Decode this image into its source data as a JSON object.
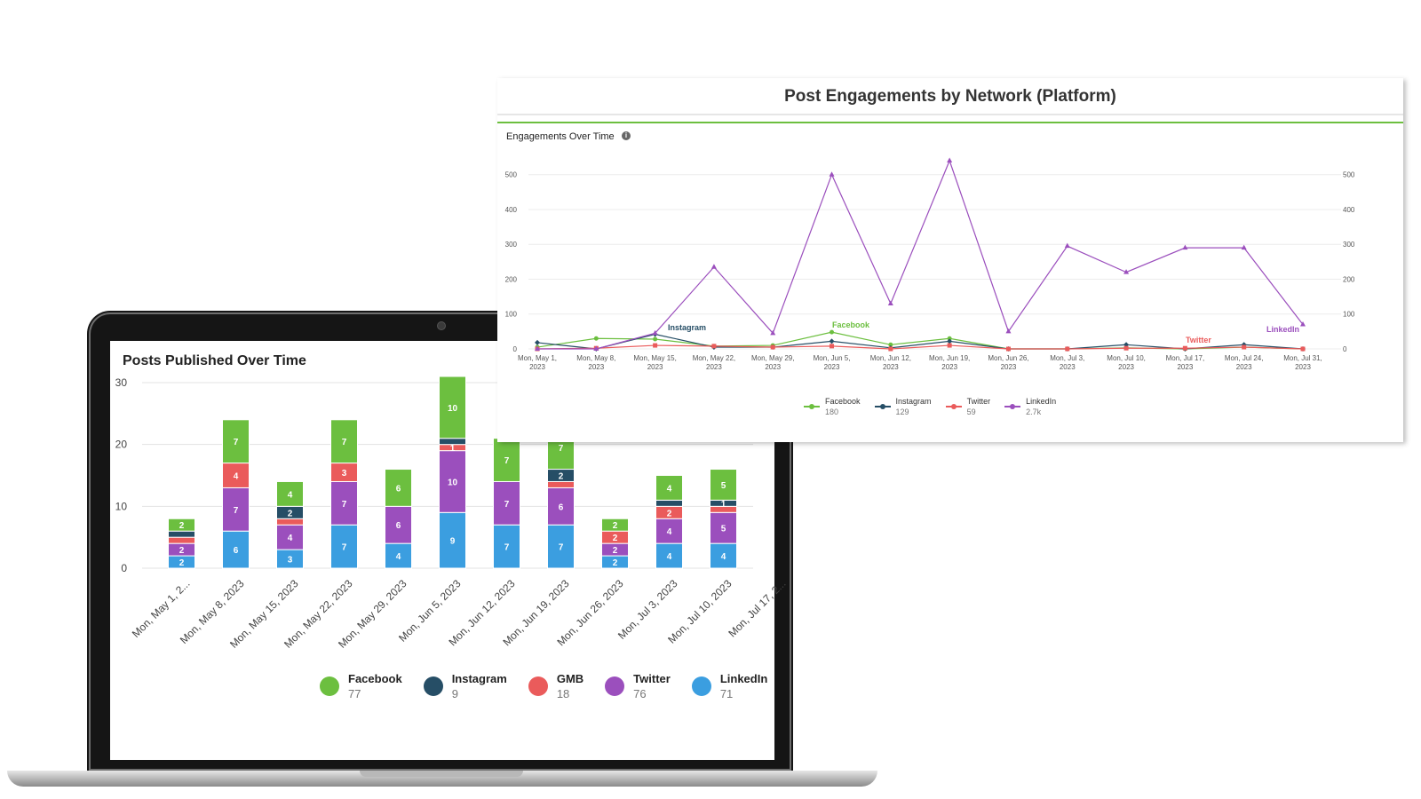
{
  "posts_chart": {
    "title": "Posts Published Over Time",
    "legend": [
      {
        "name": "Facebook",
        "total": "77",
        "color": "#6cbf3f"
      },
      {
        "name": "Instagram",
        "total": "9",
        "color": "#264e66"
      },
      {
        "name": "GMB",
        "total": "18",
        "color": "#ea5b5b"
      },
      {
        "name": "Twitter",
        "total": "76",
        "color": "#9b4fbd"
      },
      {
        "name": "LinkedIn",
        "total": "71",
        "color": "#3b9ee0"
      }
    ]
  },
  "engagement_chart": {
    "title": "Post Engagements by Network (Platform)",
    "subtitle": "Engagements Over Time",
    "info_icon": "info-icon",
    "legend": [
      {
        "name": "Facebook",
        "total": "180",
        "color": "#6cbf3f"
      },
      {
        "name": "Instagram",
        "total": "129",
        "color": "#264e66"
      },
      {
        "name": "Twitter",
        "total": "59",
        "color": "#ea5b5b"
      },
      {
        "name": "LinkedIn",
        "total": "2.7k",
        "color": "#9b4fbd"
      }
    ]
  },
  "chart_data": [
    {
      "type": "bar",
      "stacked": true,
      "title": "Posts Published Over Time",
      "categories": [
        "Mon, May 1, 2...",
        "Mon, May 8, 2023",
        "Mon, May 15, 2023",
        "Mon, May 22, 2023",
        "Mon, May 29, 2023",
        "Mon, Jun 5, 2023",
        "Mon, Jun 12, 2023",
        "Mon, Jun 19, 2023",
        "Mon, Jun 26, 2023",
        "Mon, Jul 3, 2023",
        "Mon, Jul 10, 2023",
        "Mon, Jul 17, 2..."
      ],
      "yticks": [
        0,
        10,
        20,
        30
      ],
      "ylim": [
        0,
        30
      ],
      "grid": true,
      "legend_position": "bottom",
      "series": [
        {
          "name": "LinkedIn",
          "color": "#3b9ee0",
          "values": [
            2,
            6,
            3,
            7,
            4,
            9,
            7,
            7,
            2,
            4,
            4,
            null
          ]
        },
        {
          "name": "Twitter",
          "color": "#9b4fbd",
          "values": [
            2,
            7,
            4,
            7,
            6,
            10,
            7,
            6,
            2,
            4,
            5,
            null
          ]
        },
        {
          "name": "GMB",
          "color": "#ea5b5b",
          "values": [
            1,
            4,
            1,
            3,
            0,
            1,
            0,
            1,
            2,
            2,
            1,
            null
          ]
        },
        {
          "name": "Instagram",
          "color": "#264e66",
          "values": [
            1,
            0,
            2,
            0,
            0,
            1,
            0,
            2,
            0,
            1,
            1,
            null
          ]
        },
        {
          "name": "Facebook",
          "color": "#6cbf3f",
          "values": [
            2,
            7,
            4,
            7,
            6,
            10,
            7,
            7,
            2,
            4,
            5,
            null
          ]
        }
      ],
      "data_labels": [
        [
          "2",
          "2",
          "",
          "",
          "2"
        ],
        [
          "6",
          "7",
          "4",
          "0",
          "7"
        ],
        [
          "3",
          "4",
          "",
          "2",
          "4"
        ],
        [
          "7",
          "7",
          "3",
          "0",
          "7"
        ],
        [
          "4",
          "6",
          "0",
          "",
          "6"
        ],
        [
          "9",
          "10",
          "1",
          "",
          "10"
        ],
        [
          "7",
          "7",
          "0",
          "",
          "7"
        ],
        [
          "7",
          "6",
          "",
          "2",
          "7"
        ],
        [
          "2",
          "2",
          "2",
          "",
          "2"
        ],
        [
          "4",
          "4",
          "2",
          "",
          "4"
        ],
        [
          "4",
          "5",
          "",
          "1",
          "5"
        ]
      ]
    },
    {
      "type": "line",
      "title": "Post Engagements by Network (Platform)",
      "subtitle": "Engagements Over Time",
      "x": [
        "Mon, May 1, 2023",
        "Mon, May 8, 2023",
        "Mon, May 15, 2023",
        "Mon, May 22, 2023",
        "Mon, May 29, 2023",
        "Mon, Jun 5, 2023",
        "Mon, Jun 12, 2023",
        "Mon, Jun 19, 2023",
        "Mon, Jun 26, 2023",
        "Mon, Jul 3, 2023",
        "Mon, Jul 10, 2023",
        "Mon, Jul 17, 2023",
        "Mon, Jul 24, 2023",
        "Mon, Jul 31, 2023"
      ],
      "yticks": [
        0,
        100,
        200,
        300,
        400,
        500
      ],
      "ylim": [
        0,
        540
      ],
      "grid": true,
      "legend_position": "bottom",
      "series": [
        {
          "name": "Facebook",
          "color": "#6cbf3f",
          "marker": "circle",
          "values": [
            5,
            30,
            28,
            8,
            10,
            48,
            12,
            30,
            0,
            0,
            3,
            0,
            5,
            0
          ]
        },
        {
          "name": "Instagram",
          "color": "#264e66",
          "marker": "diamond",
          "values": [
            18,
            0,
            42,
            5,
            5,
            22,
            3,
            22,
            0,
            0,
            12,
            0,
            12,
            0
          ]
        },
        {
          "name": "Twitter",
          "color": "#ea5b5b",
          "marker": "square",
          "values": [
            0,
            2,
            10,
            8,
            5,
            8,
            0,
            10,
            0,
            0,
            2,
            2,
            5,
            0
          ]
        },
        {
          "name": "LinkedIn",
          "color": "#9b4fbd",
          "marker": "triangle",
          "values": [
            0,
            0,
            45,
            235,
            45,
            500,
            130,
            540,
            50,
            295,
            220,
            290,
            290,
            70
          ]
        }
      ],
      "annotations": [
        {
          "text": "Instagram",
          "color": "#264e66"
        },
        {
          "text": "Facebook",
          "color": "#6cbf3f"
        },
        {
          "text": "Twitter",
          "color": "#ea5b5b"
        },
        {
          "text": "LinkedIn",
          "color": "#9b4fbd"
        }
      ]
    }
  ]
}
